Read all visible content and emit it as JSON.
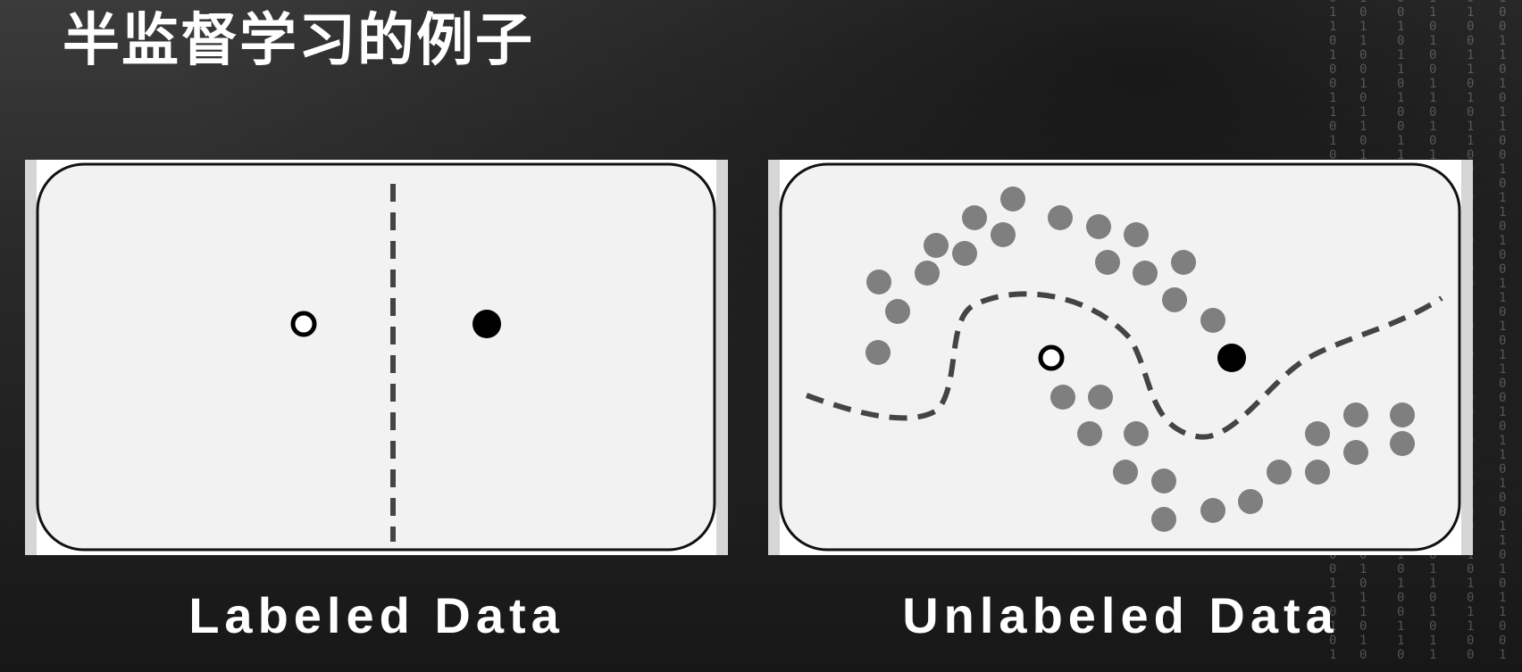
{
  "title": "半监督学习的例子",
  "panels": {
    "labeled": {
      "caption": "Labeled Data"
    },
    "unlabeled": {
      "caption": "Unlabeled Data"
    }
  },
  "colors": {
    "panel_fill": "#f2f2f2",
    "outline": "#111111",
    "boundary": "#444444",
    "unlabeled_point": "#7f7f7f",
    "labeled_negative": "#ffffff",
    "labeled_positive": "#000000"
  },
  "decorations": {
    "binary_columns": [
      "0\n1\n1\n0\n1\n0\n0\n1\n1\n0\n1\n0\n1\n1\n0\n0\n1\n0\n1\n1\n0\n1\n0\n0\n1\n1\n0\n1\n0\n1\n1\n0\n0\n1\n0\n1\n1\n0\n1\n0\n0\n1\n1\n0\n1\n0\n1",
      "1\n0\n1\n1\n0\n0\n1\n0\n1\n1\n0\n1\n0\n0\n1\n1\n0\n1\n0\n1\n1\n0\n0\n1\n0\n1\n1\n0\n1\n0\n0\n1\n1\n0\n1\n0\n1\n1\n0\n0\n1\n0\n1\n1\n0\n1\n0",
      "0\n0\n1\n0\n1\n1\n0\n1\n0\n0\n1\n1\n0\n1\n0\n1\n1\n0\n0\n1\n0\n1\n1\n0\n1\n0\n0\n1\n1\n0\n1\n0\n1\n1\n0\n0\n1\n0\n1\n1\n0\n1\n0\n0\n1\n1\n0",
      "1\n1\n0\n1\n0\n0\n1\n1\n0\n1\n0\n1\n1\n0\n0\n1\n0\n1\n1\n0\n1\n0\n0\n1\n1\n0\n1\n0\n1\n1\n0\n0\n1\n0\n1\n1\n0\n1\n0\n0\n1\n1\n0\n1\n0\n1\n1",
      "0\n1\n0\n0\n1\n1\n0\n1\n0\n1\n1\n0\n0\n1\n0\n1\n1\n0\n1\n0\n0\n1\n1\n0\n1\n0\n1\n1\n0\n0\n1\n0\n1\n1\n0\n1\n0\n0\n1\n1\n0\n1\n0\n1\n1\n0\n0",
      "1\n0\n0\n1\n1\n0\n1\n0\n1\n1\n0\n0\n1\n0\n1\n1\n0\n1\n0\n0\n1\n1\n0\n1\n0\n1\n1\n0\n0\n1\n0\n1\n1\n0\n1\n0\n0\n1\n1\n0\n1\n0\n1\n1\n0\n0\n1"
    ]
  }
}
